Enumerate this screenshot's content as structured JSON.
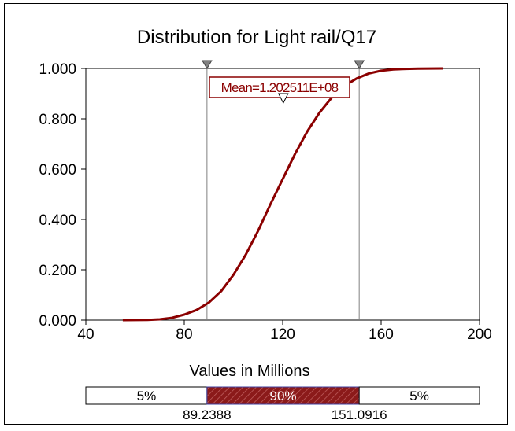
{
  "chart_data": {
    "type": "line",
    "title": "Distribution for Light rail/Q17",
    "xlabel": "Values in Millions",
    "ylabel": "",
    "xlim": [
      40,
      200
    ],
    "ylim": [
      0,
      1
    ],
    "x_ticks": [
      "40",
      "80",
      "120",
      "160",
      "200"
    ],
    "y_ticks": [
      "0.000",
      "0.200",
      "0.400",
      "0.600",
      "0.800",
      "1.000"
    ],
    "grid": false,
    "series": [
      {
        "name": "",
        "color": "#8b0000",
        "points": [
          [
            55,
            0.0
          ],
          [
            65,
            0.001
          ],
          [
            70,
            0.003
          ],
          [
            75,
            0.009
          ],
          [
            80,
            0.022
          ],
          [
            85,
            0.04
          ],
          [
            90,
            0.07
          ],
          [
            95,
            0.115
          ],
          [
            100,
            0.18
          ],
          [
            105,
            0.26
          ],
          [
            110,
            0.355
          ],
          [
            115,
            0.46
          ],
          [
            120,
            0.56
          ],
          [
            125,
            0.66
          ],
          [
            130,
            0.75
          ],
          [
            135,
            0.825
          ],
          [
            140,
            0.885
          ],
          [
            145,
            0.93
          ],
          [
            150,
            0.96
          ],
          [
            155,
            0.98
          ],
          [
            160,
            0.991
          ],
          [
            165,
            0.996
          ],
          [
            170,
            0.998
          ],
          [
            175,
            0.999
          ],
          [
            185,
            1.0
          ]
        ]
      }
    ],
    "markers": {
      "lower": {
        "value": 89.2388,
        "label": "89.2388"
      },
      "upper": {
        "value": 151.0916,
        "label": 151.0916
      }
    },
    "mean": {
      "value": 120.2511,
      "label": "Mean=1.202511E+08"
    },
    "probability_bar": {
      "left_label": "5%",
      "middle_label": "90%",
      "right_label": "5%",
      "lower_value_label": "89.2388",
      "upper_value_label": "151.0916",
      "middle_fill": "#8b1a1a",
      "border_color": "#4040a0"
    },
    "colors": {
      "curve": "#8b0000",
      "mean_label": "#8b0000",
      "marker": "#808080"
    }
  }
}
